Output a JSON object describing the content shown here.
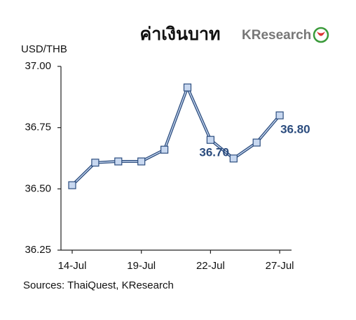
{
  "chart_data": {
    "type": "line",
    "title": "ค่าเงินบาท",
    "logo": "KResearch",
    "y_label": "USD/THB",
    "source": "Sources: ThaiQuest, KResearch",
    "categories": [
      "14-Jul",
      null,
      null,
      "19-Jul",
      null,
      null,
      "22-Jul",
      null,
      null,
      "27-Jul"
    ],
    "series": [
      {
        "name": "USD/THB",
        "color": "#2b4c7e",
        "values": [
          36.515,
          36.607,
          36.612,
          36.612,
          36.66,
          36.914,
          36.7,
          36.624,
          36.689,
          36.8
        ],
        "value_labels": [
          null,
          null,
          null,
          null,
          null,
          null,
          "36.70",
          null,
          null,
          "36.80"
        ]
      }
    ],
    "ylim": [
      36.25,
      37.0
    ],
    "yticks": [
      {
        "value": 36.25,
        "label": "36.25"
      },
      {
        "value": 36.5,
        "label": "36.50"
      },
      36.75,
      {
        "value": 37.0,
        "label": "37.00"
      }
    ]
  }
}
